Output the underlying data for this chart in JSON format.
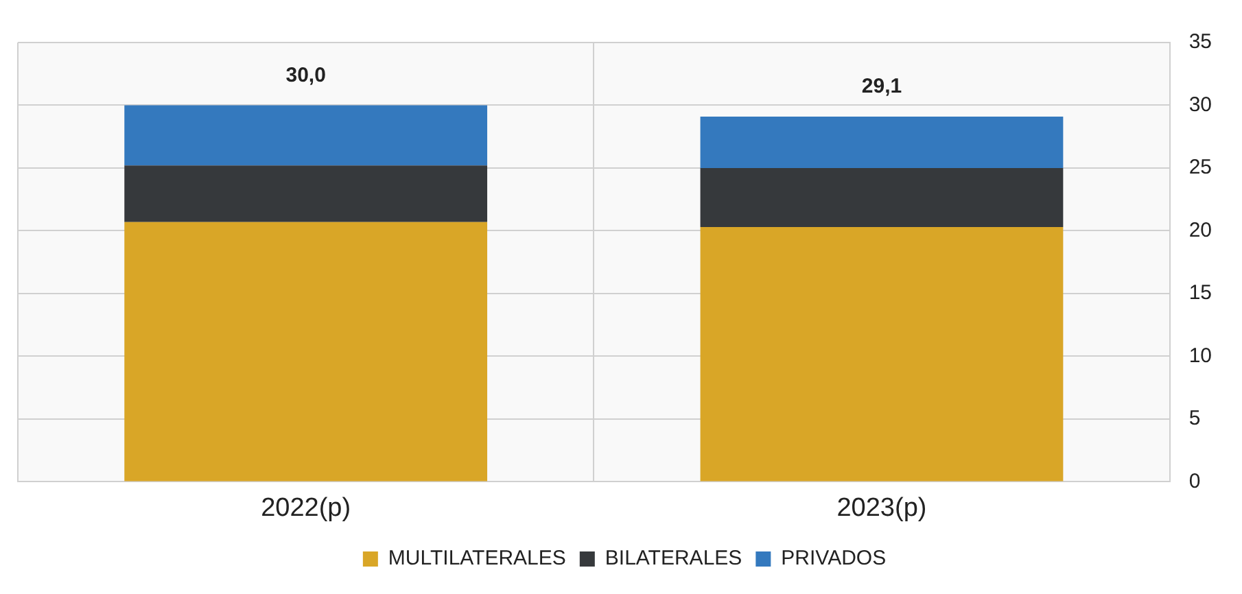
{
  "chart_data": {
    "type": "bar",
    "stacked": true,
    "categories": [
      "2022(p)",
      "2023(p)"
    ],
    "series": [
      {
        "name": "MULTILATERALES",
        "color": "#d9a627",
        "values": [
          20.7,
          20.3
        ]
      },
      {
        "name": "BILATERALES",
        "color": "#36393c",
        "values": [
          4.5,
          4.7
        ]
      },
      {
        "name": "PRIVADOS",
        "color": "#3479be",
        "values": [
          4.8,
          4.1
        ]
      }
    ],
    "totals": [
      "30,0",
      "29,1"
    ],
    "ylim": [
      0,
      35
    ],
    "yticks": [
      0,
      5,
      10,
      15,
      20,
      25,
      30,
      35
    ],
    "grid": true,
    "legend": "bottom"
  }
}
